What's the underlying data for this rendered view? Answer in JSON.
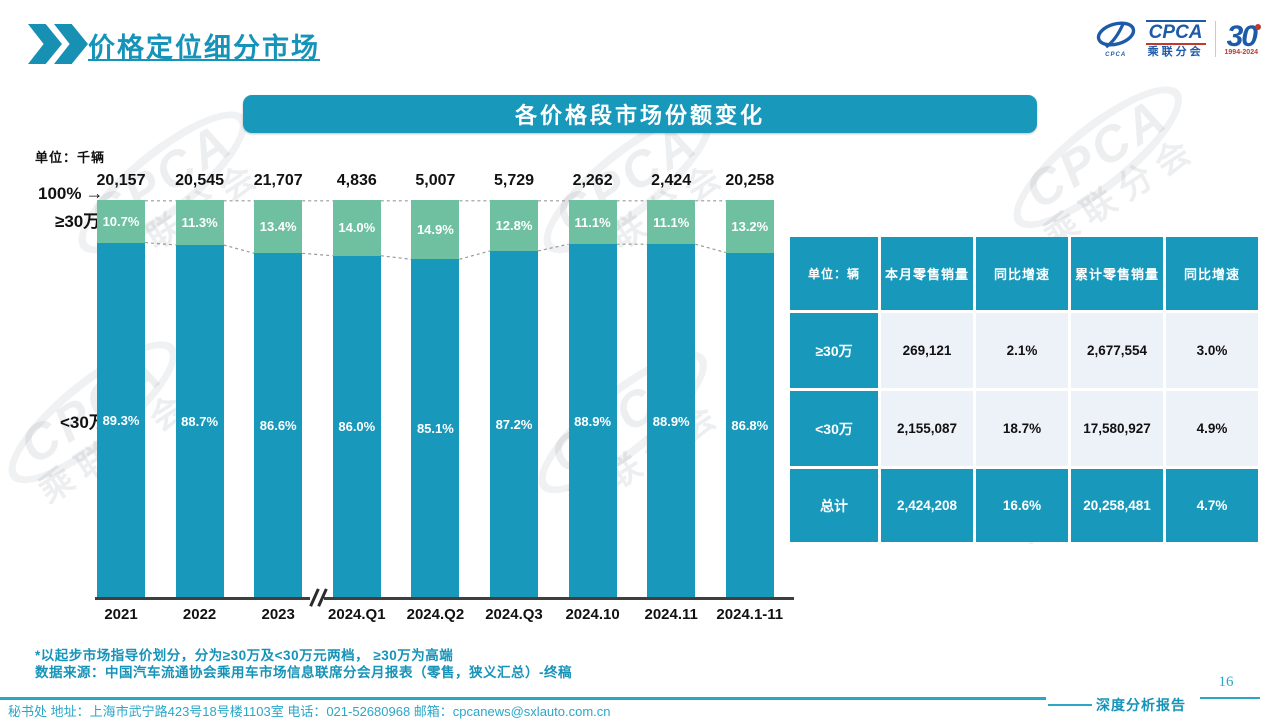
{
  "page": {
    "title": "价格定位细分市场",
    "page_number": "16",
    "footer_left": "秘书处  地址：上海市武宁路423号18号楼1103室 电话：021-52680968  邮箱：cpcanews@sxlauto.com.cn",
    "footer_right": "深度分析报告"
  },
  "logo": {
    "cpca_en": "CPCA",
    "cpca_cn": "乘联分会",
    "anniversary": "30",
    "anniversary_years": "1994-2024"
  },
  "banner_title": "各价格段市场份额变化",
  "unit_label": "单位：千辆",
  "axis": {
    "hundred": "100%",
    "arrow_icon": "→",
    "high": "≥30万",
    "low": "<30万"
  },
  "footnotes": [
    "*以起步市场指导价划分，分为≥30万及<30万元两档， ≥30万为高端",
    "数据来源：中国汽车流通协会乘用车市场信息联席分会月报表（零售，狭义汇总）-终稿"
  ],
  "chart_data": {
    "type": "bar",
    "subtype": "100%-stacked-column",
    "title": "各价格段市场份额变化",
    "unit": "千辆",
    "categories": [
      "2021",
      "2022",
      "2023",
      "2024.Q1",
      "2024.Q2",
      "2024.Q3",
      "2024.10",
      "2024.11",
      "2024.1-11"
    ],
    "totals": [
      "20,157",
      "20,545",
      "21,707",
      "4,836",
      "5,007",
      "5,729",
      "2,262",
      "2,424",
      "20,258"
    ],
    "series": [
      {
        "name": "≥30万",
        "color": "#6ec0a1",
        "values": [
          10.7,
          11.3,
          13.4,
          14.0,
          14.9,
          12.8,
          11.1,
          11.1,
          13.2
        ]
      },
      {
        "name": "<30万",
        "color": "#1899bc",
        "values": [
          89.3,
          88.7,
          86.6,
          86.0,
          85.1,
          87.2,
          88.9,
          88.9,
          86.8
        ]
      }
    ],
    "ylim": [
      0,
      100
    ],
    "axis_break_after_index": 2,
    "legend_position": "none",
    "grid": false
  },
  "table": {
    "unit_header": "单位：辆",
    "headers": [
      "单位：辆",
      "本月零售销量",
      "同比增速",
      "累计零售销量",
      "同比增速"
    ],
    "rows": [
      {
        "label": "≥30万",
        "cells": [
          "269,121",
          "2.1%",
          "2,677,554",
          "3.0%"
        ],
        "highlight": false
      },
      {
        "label": "<30万",
        "cells": [
          "2,155,087",
          "18.7%",
          "17,580,927",
          "4.9%"
        ],
        "highlight": false
      },
      {
        "label": "总计",
        "cells": [
          "2,424,208",
          "16.6%",
          "20,258,481",
          "4.7%"
        ],
        "highlight": true
      }
    ]
  },
  "colors": {
    "teal": "#1899bc",
    "green": "#6ec0a1",
    "light_cell": "#edf1f8",
    "title_teal": "#1693b8"
  },
  "watermark": {
    "text_en": "CPCA",
    "text_cn": "乘联分会"
  }
}
